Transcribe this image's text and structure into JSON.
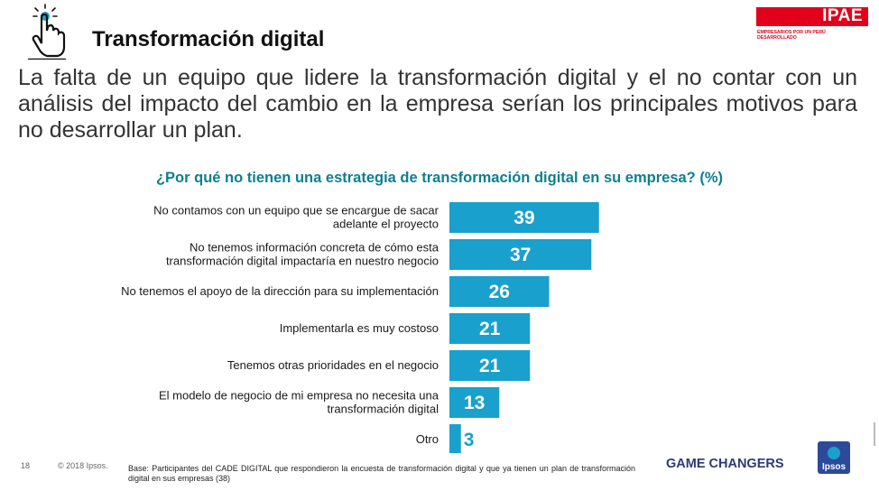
{
  "header": {
    "title": "Transformación digital",
    "logo_text": "IPAE",
    "logo_tagline": "EMPRESARIOS POR UN PERÚ DESARROLLADO"
  },
  "subtitle": "La falta de un equipo que lidere la transformación digital y el no contar con un análisis del impacto del cambio en la empresa serían los principales motivos para no desarrollar un plan.",
  "chart_data": {
    "type": "bar",
    "orientation": "horizontal",
    "title": "¿Por qué no tienen una estrategia de transformación digital en su empresa? (%)",
    "categories": [
      [
        "No contamos con un equipo que se encargue de sacar",
        "adelante el proyecto"
      ],
      [
        "No tenemos información concreta de cómo esta",
        "transformación digital impactaría en nuestro negocio"
      ],
      [
        "No tenemos el apoyo de la dirección para su implementación"
      ],
      [
        "Implementarla es muy costoso"
      ],
      [
        "Tenemos otras prioridades en el negocio"
      ],
      [
        "El modelo de negocio de mi empresa no necesita una",
        "transformación digital"
      ],
      [
        "Otro"
      ]
    ],
    "values": [
      39,
      37,
      26,
      21,
      21,
      13,
      3
    ],
    "bar_color": "#1aa0cc",
    "grid": false
  },
  "footer": {
    "page_number": "18",
    "copyright": "© 2018 Ipsos.",
    "base_note": "Base: Participantes del CADE DIGITAL que respondieron la encuesta de transformación digital y que ya tienen un plan de transformación digital en sus empresas (38)",
    "tagline": "GAME CHANGERS",
    "brand": "Ipsos"
  }
}
